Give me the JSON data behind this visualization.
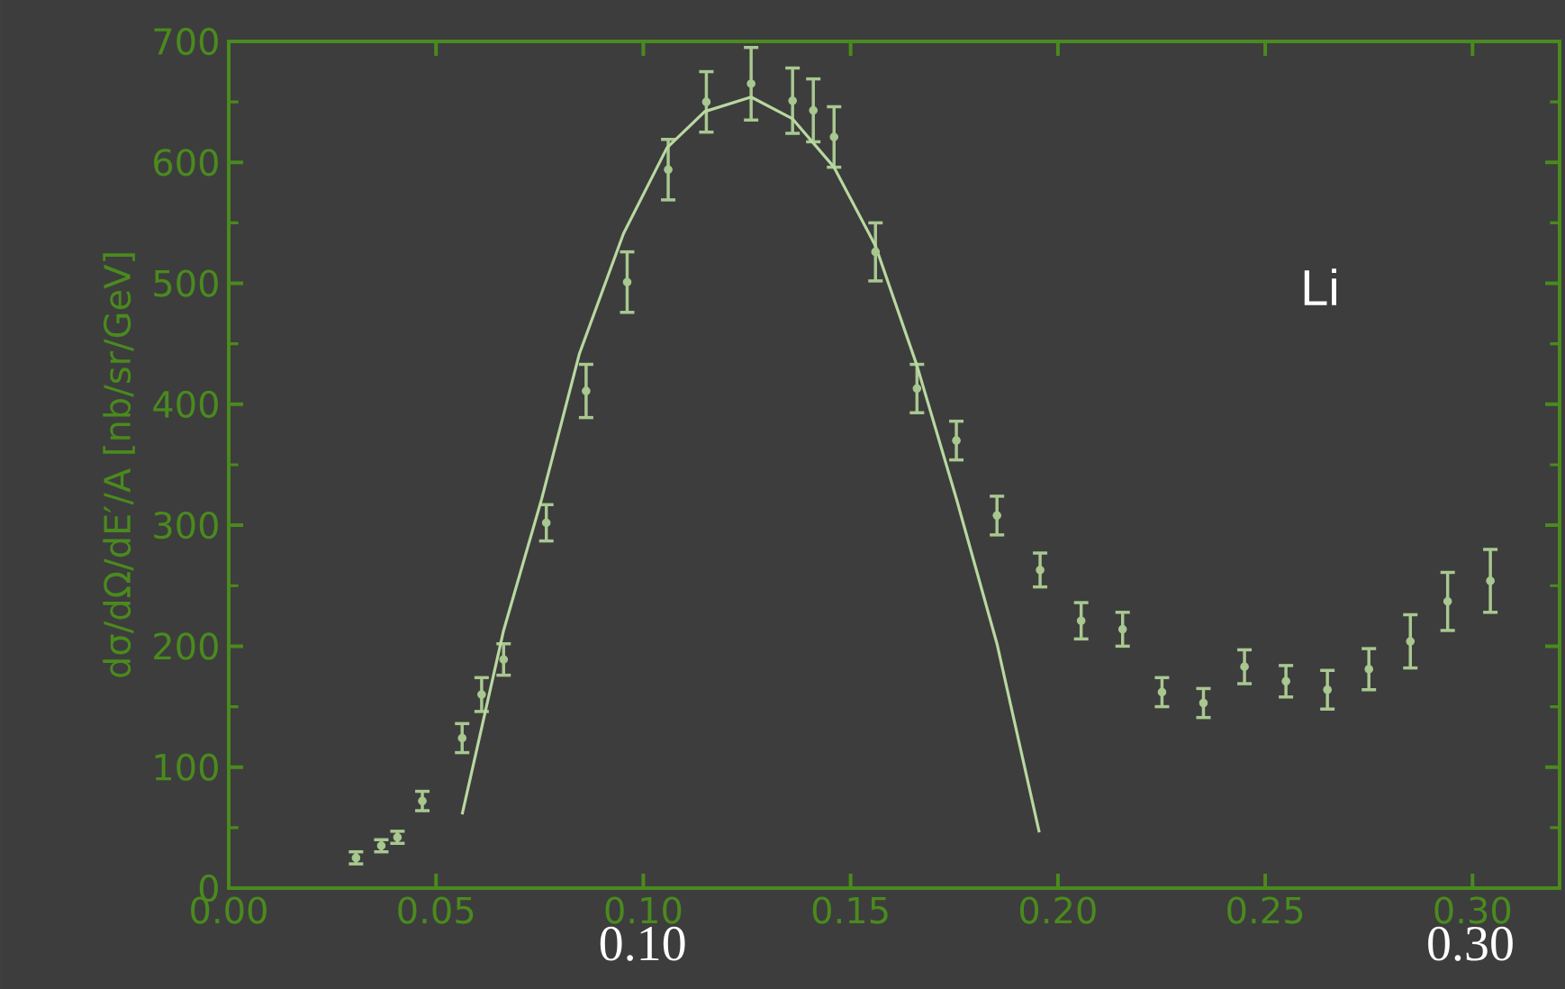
{
  "chart_data": {
    "type": "scatter",
    "ylabel": "dσ/dΩ/dE′/A [nb/sr/GeV]",
    "xlim": [
      0,
      0.321
    ],
    "ylim": [
      0,
      700
    ],
    "xticks": [
      {
        "value": 0,
        "label": "0.00"
      },
      {
        "value": 0.05,
        "label": "0.05"
      },
      {
        "value": 0.1,
        "label": "0.10"
      },
      {
        "value": 0.15,
        "label": "0.15"
      },
      {
        "value": 0.2,
        "label": "0.20"
      },
      {
        "value": 0.25,
        "label": "0.25"
      },
      {
        "value": 0.3,
        "label": "0.30"
      }
    ],
    "yticks": [
      0,
      100,
      200,
      300,
      400,
      500,
      600,
      700
    ],
    "marker": "none",
    "annotations": [
      "Li",
      "0.10",
      "0.30"
    ],
    "series": [
      {
        "color": "#a8c890",
        "marker": "circle",
        "x": [
          0.0307,
          0.0368,
          0.0407,
          0.0467,
          0.0563,
          0.061,
          0.0663,
          0.0766,
          0.0862,
          0.0961,
          0.106,
          0.1152,
          0.126,
          0.136,
          0.141,
          0.146,
          0.156,
          0.166,
          0.1755,
          0.1853,
          0.1957,
          0.2056,
          0.2156,
          0.2251,
          0.2351,
          0.245,
          0.255,
          0.265,
          0.275,
          0.285,
          0.294,
          0.3043
        ],
        "values": [
          25,
          35,
          42,
          72,
          124,
          160,
          189,
          302,
          411,
          501,
          594,
          650,
          665,
          651,
          643,
          621,
          526,
          413,
          370,
          308,
          263,
          221,
          214,
          162,
          153,
          183,
          171,
          164,
          181,
          204,
          237,
          254
        ],
        "errors": [
          5,
          5,
          5,
          8,
          12,
          14,
          13,
          15,
          22,
          25,
          25,
          25,
          30,
          27,
          26,
          25,
          24,
          20,
          16,
          16,
          14,
          15,
          14,
          12,
          12,
          14,
          13,
          16,
          17,
          22,
          24,
          26
        ]
      },
      {
        "type": "line",
        "color": "#b8d8a0",
        "line_style": "solid",
        "x": [
          0.0563,
          0.0663,
          0.0755,
          0.0846,
          0.0952,
          0.1057,
          0.1148,
          0.126,
          0.136,
          0.146,
          0.156,
          0.166,
          0.1755,
          0.1853,
          0.1955
        ],
        "values": [
          61,
          213,
          322,
          442,
          541,
          612,
          642,
          654,
          636,
          596,
          531,
          432,
          322,
          202,
          46
        ]
      }
    ]
  }
}
